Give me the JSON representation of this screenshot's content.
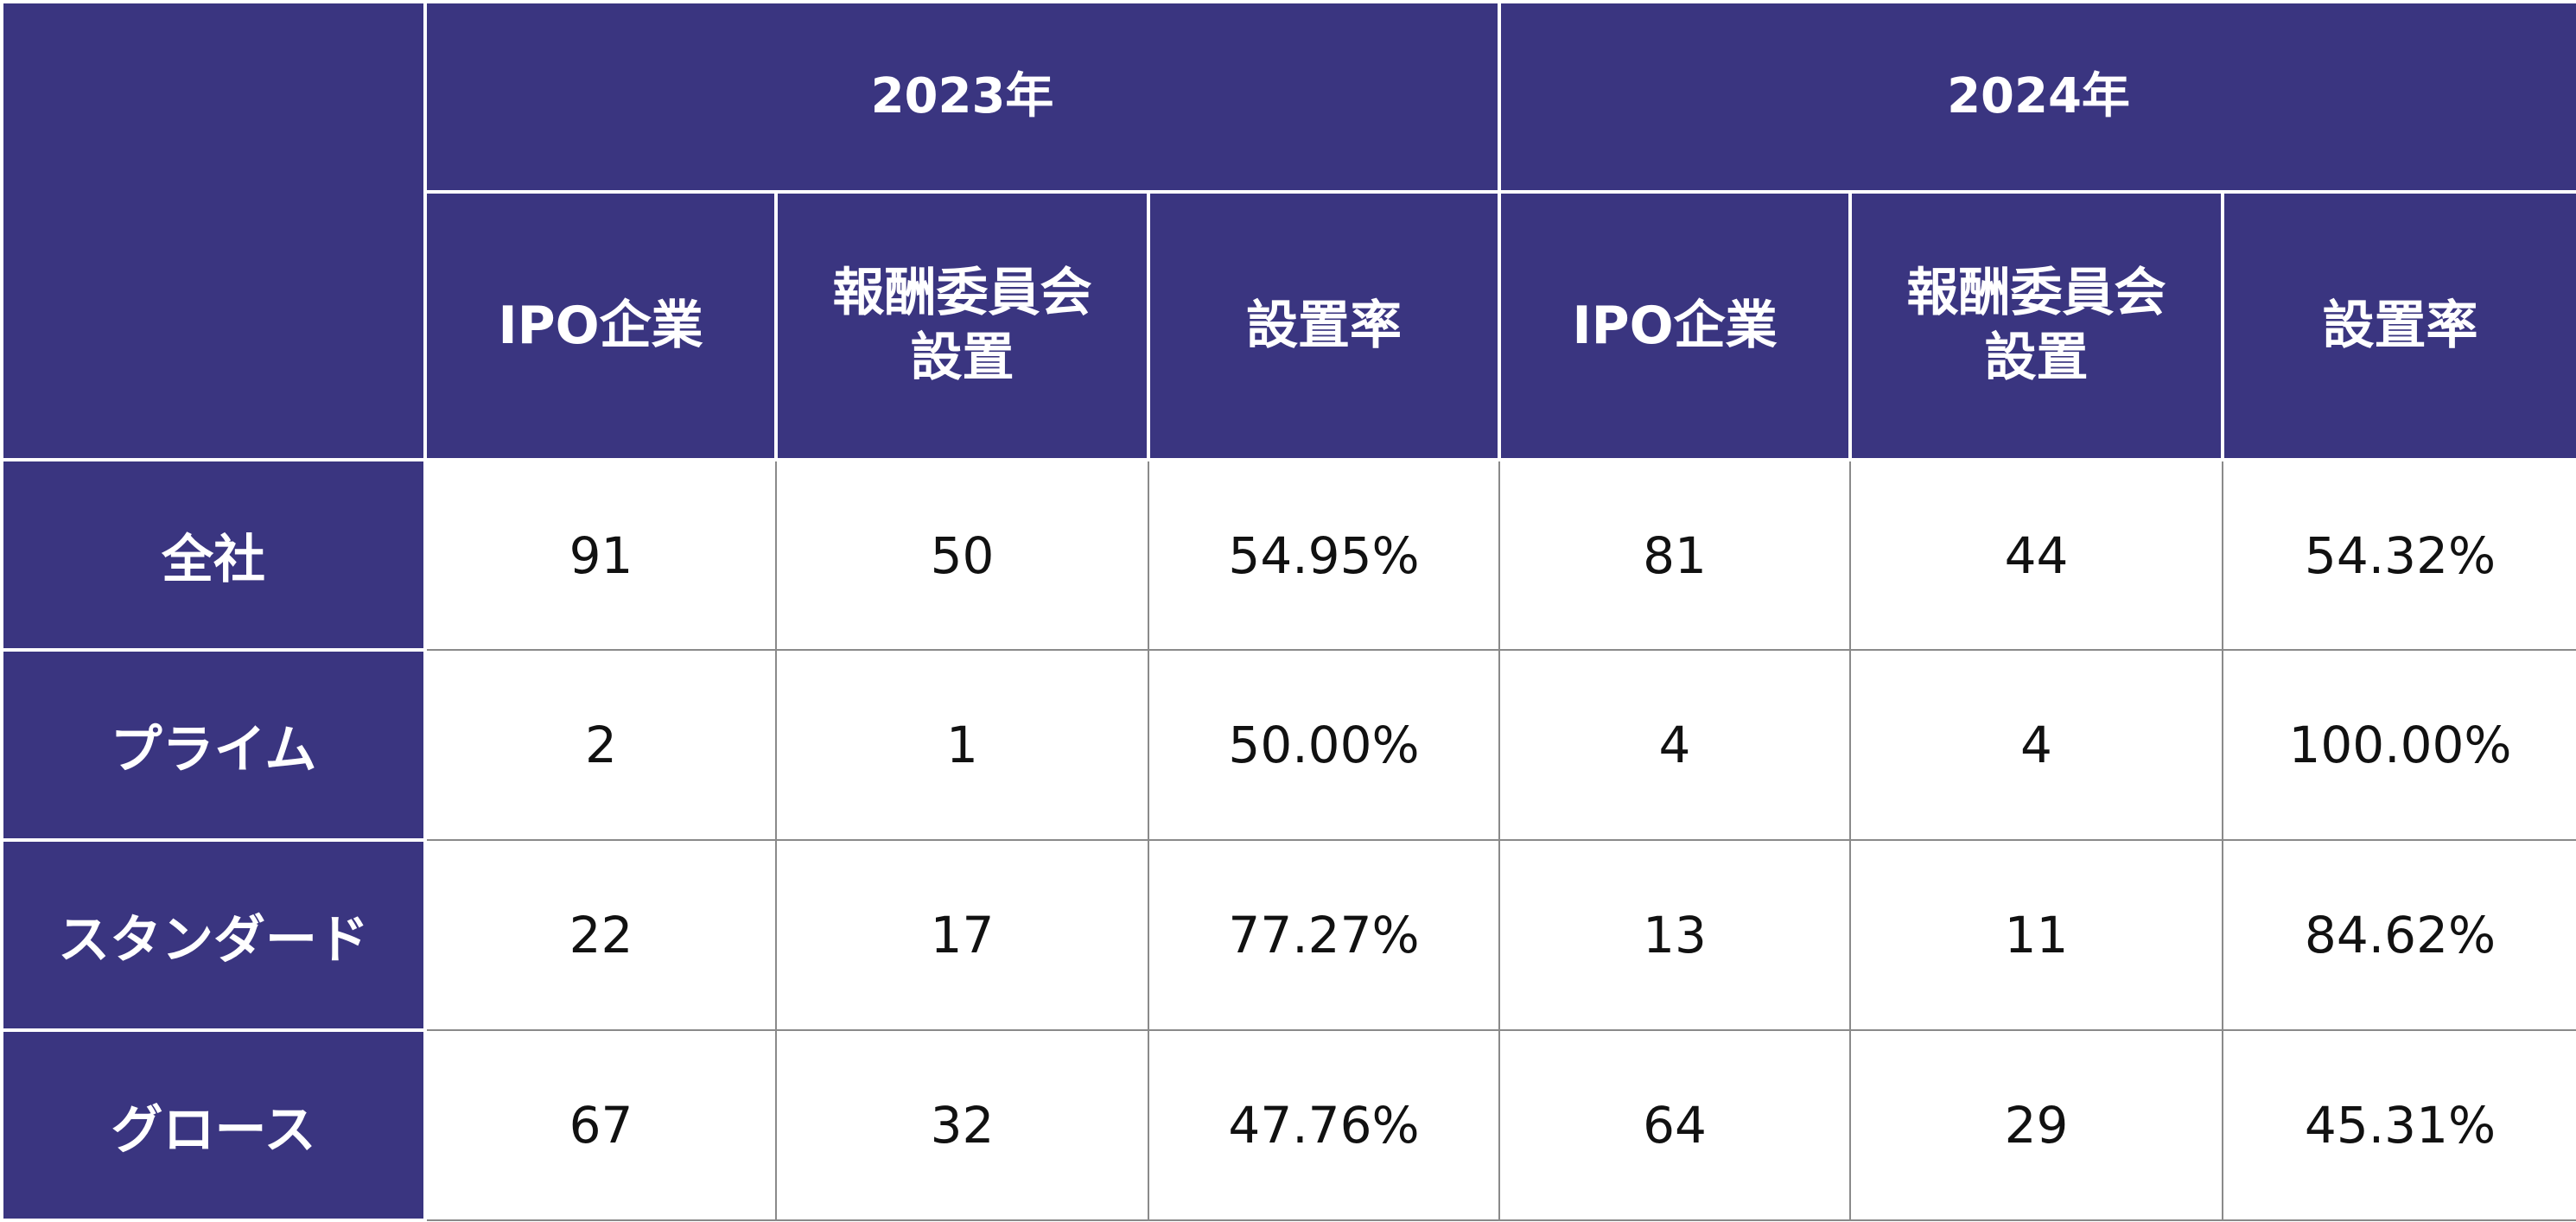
{
  "chart_data": {
    "type": "table",
    "year_headers": [
      "2023年",
      "2024年"
    ],
    "column_headers": [
      "IPO企業",
      "報酬委員会\n設置",
      "設置率"
    ],
    "rows": [
      {
        "label": "全社",
        "cells": [
          "91",
          "50",
          "54.95%",
          "81",
          "44",
          "54.32%"
        ]
      },
      {
        "label": "プライム",
        "cells": [
          "2",
          "1",
          "50.00%",
          "4",
          "4",
          "100.00%"
        ]
      },
      {
        "label": "スタンダード",
        "cells": [
          "22",
          "17",
          "77.27%",
          "13",
          "11",
          "84.62%"
        ]
      },
      {
        "label": "グロース",
        "cells": [
          "67",
          "32",
          "47.76%",
          "64",
          "29",
          "45.31%"
        ]
      }
    ]
  },
  "colors": {
    "header_background": "#3a3580",
    "header_text": "#ffffff",
    "cell_background": "#ffffff",
    "cell_text": "#111111",
    "grid_line": "#8a8a8a"
  }
}
